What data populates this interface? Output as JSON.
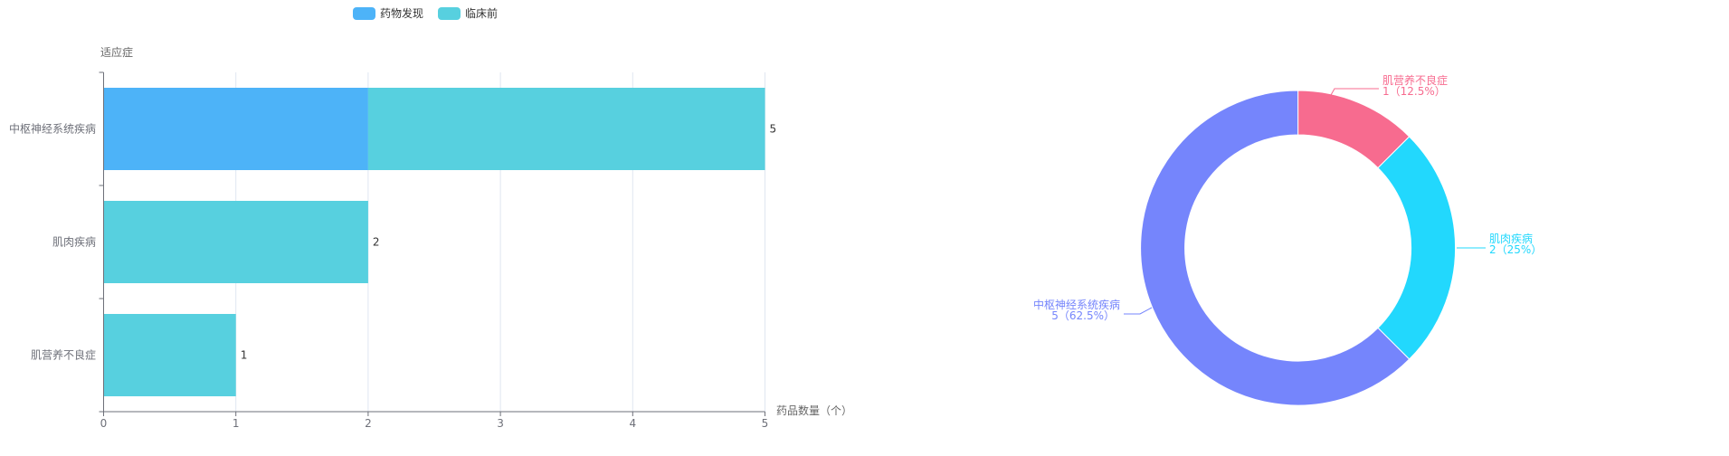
{
  "chart_data": [
    {
      "type": "bar",
      "orientation": "horizontal",
      "stacked": true,
      "legend": {
        "placement": "top",
        "entries": [
          "药物发现",
          "临床前"
        ]
      },
      "ylabel": "适应症",
      "xlabel": "药品数量（个）",
      "categories": [
        "中枢神经系统疾病",
        "肌肉疾病",
        "肌营养不良症"
      ],
      "series": [
        {
          "name": "药物发现",
          "values": [
            2,
            0,
            0
          ],
          "color": "#4db3f8"
        },
        {
          "name": "临床前",
          "values": [
            3,
            2,
            1
          ],
          "color": "#57d0df"
        }
      ],
      "totals": [
        5,
        2,
        1
      ],
      "xlim": [
        0,
        5
      ],
      "xticks": [
        "0",
        "1",
        "2",
        "3",
        "4",
        "5"
      ],
      "grid": true
    },
    {
      "type": "pie",
      "donut": true,
      "slices": [
        {
          "label": "肌营养不良症",
          "value": 1,
          "percent": "12.5%",
          "text": "1（12.5%）",
          "color": "#f76b8f"
        },
        {
          "label": "肌肉疾病",
          "value": 2,
          "percent": "25%",
          "text": "2（25%）",
          "color": "#22d8fd"
        },
        {
          "label": "中枢神经系统疾病",
          "value": 5,
          "percent": "62.5%",
          "text": "5（62.5%）",
          "color": "#7585fc"
        }
      ]
    }
  ]
}
